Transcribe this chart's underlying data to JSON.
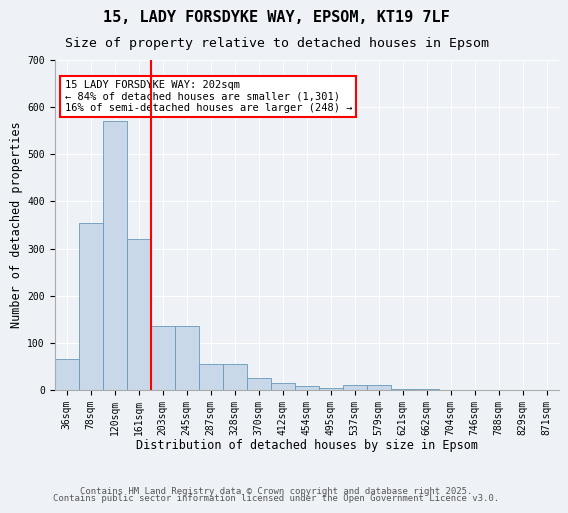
{
  "title1": "15, LADY FORSDYKE WAY, EPSOM, KT19 7LF",
  "title2": "Size of property relative to detached houses in Epsom",
  "xlabel": "Distribution of detached houses by size in Epsom",
  "ylabel": "Number of detached properties",
  "categories": [
    "36sqm",
    "78sqm",
    "120sqm",
    "161sqm",
    "203sqm",
    "245sqm",
    "287sqm",
    "328sqm",
    "370sqm",
    "412sqm",
    "454sqm",
    "495sqm",
    "537sqm",
    "579sqm",
    "621sqm",
    "662sqm",
    "704sqm",
    "746sqm",
    "788sqm",
    "829sqm",
    "871sqm"
  ],
  "values": [
    65,
    355,
    570,
    320,
    135,
    135,
    55,
    55,
    25,
    15,
    8,
    4,
    10,
    10,
    3,
    2,
    1,
    1,
    1,
    1,
    1
  ],
  "bar_color": "#c8d8e8",
  "bar_edge_color": "#6699bb",
  "red_line_index": 4,
  "annotation_text": "15 LADY FORSDYKE WAY: 202sqm\n← 84% of detached houses are smaller (1,301)\n16% of semi-detached houses are larger (248) →",
  "annotation_box_color": "white",
  "annotation_box_edge": "red",
  "ylim": [
    0,
    700
  ],
  "yticks": [
    0,
    100,
    200,
    300,
    400,
    500,
    600,
    700
  ],
  "footer1": "Contains HM Land Registry data © Crown copyright and database right 2025.",
  "footer2": "Contains public sector information licensed under the Open Government Licence v3.0.",
  "bg_color": "#eef2f7",
  "title1_fontsize": 11,
  "title2_fontsize": 9.5,
  "axis_label_fontsize": 8.5,
  "tick_fontsize": 7,
  "annotation_fontsize": 7.5,
  "footer_fontsize": 6.5
}
